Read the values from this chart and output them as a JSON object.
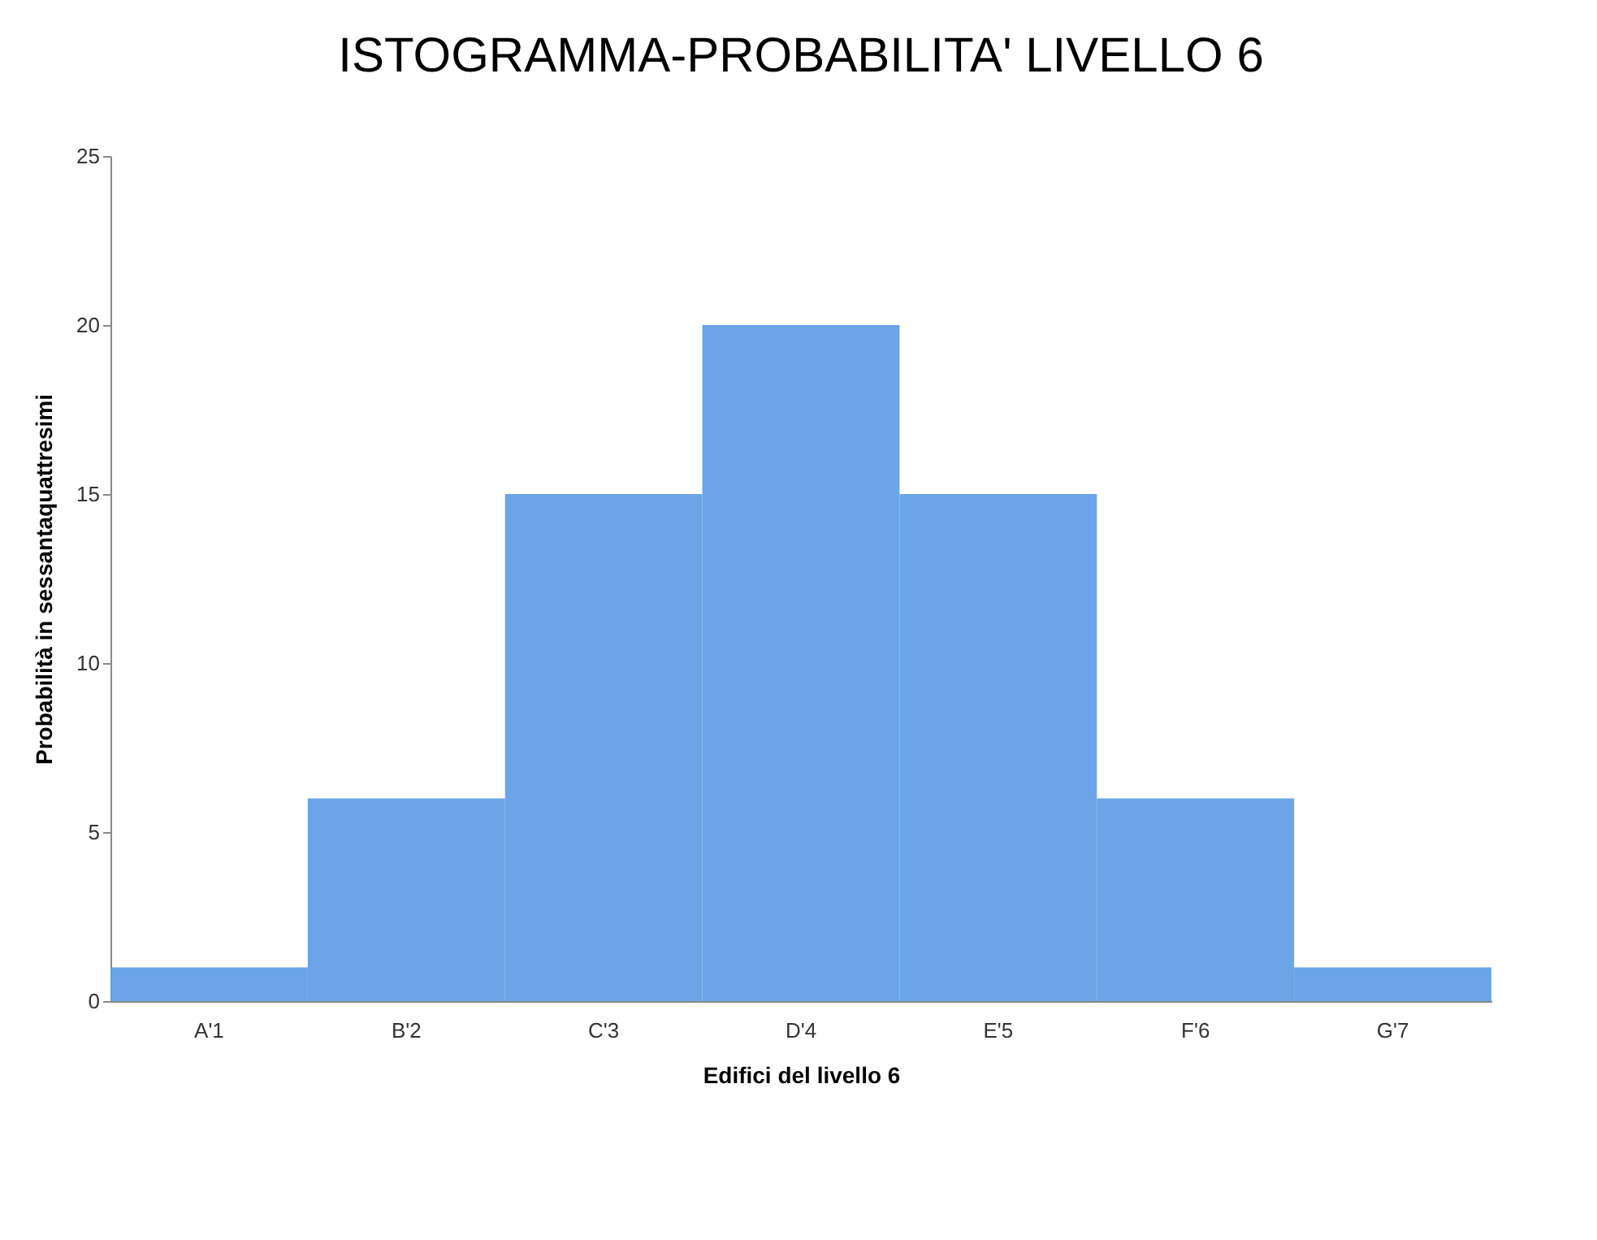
{
  "chart_data": {
    "type": "bar",
    "title": "ISTOGRAMMA-PROBABILITA' LIVELLO 6",
    "xlabel": "Edifici del livello 6",
    "ylabel": "Probabilità in sessantaquattresimi",
    "categories": [
      "A'1",
      "B'2",
      "C'3",
      "D'4",
      "E'5",
      "F'6",
      "G'7"
    ],
    "values": [
      1,
      6,
      15,
      20,
      15,
      6,
      1
    ],
    "color": "#5b9be6",
    "ylim": [
      0,
      25
    ],
    "yticks": [
      0,
      5,
      10,
      15,
      20,
      25
    ],
    "grid": false,
    "legend": false
  }
}
